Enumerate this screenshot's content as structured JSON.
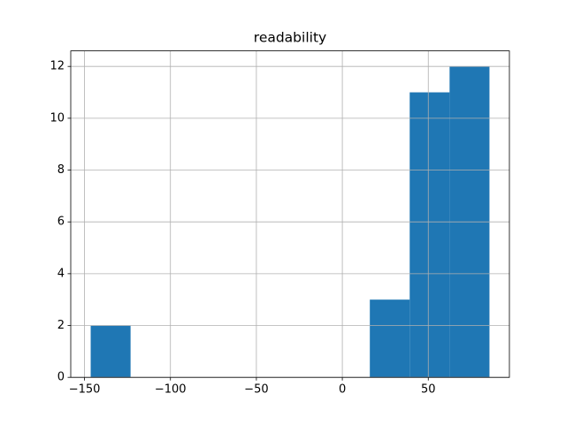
{
  "chart_data": {
    "type": "histogram",
    "title": "readability",
    "bins": [
      -146.4,
      -123.2,
      -100,
      -76.8,
      -53.6,
      -30.4,
      -7.2,
      16,
      39.2,
      62.4,
      85.6
    ],
    "values": [
      2,
      0,
      0,
      0,
      0,
      0,
      0,
      3,
      11,
      12
    ],
    "color": "#1f77b4",
    "xlim": [
      -158,
      97.2
    ],
    "xticks": [
      {
        "value": -150,
        "label": "−150"
      },
      {
        "value": -100,
        "label": "−100"
      },
      {
        "value": -50,
        "label": "−50"
      },
      0,
      50
    ],
    "ylim": [
      0,
      12.6
    ],
    "yticks": [
      0,
      2,
      4,
      6,
      8,
      10,
      12
    ],
    "grid": true
  }
}
